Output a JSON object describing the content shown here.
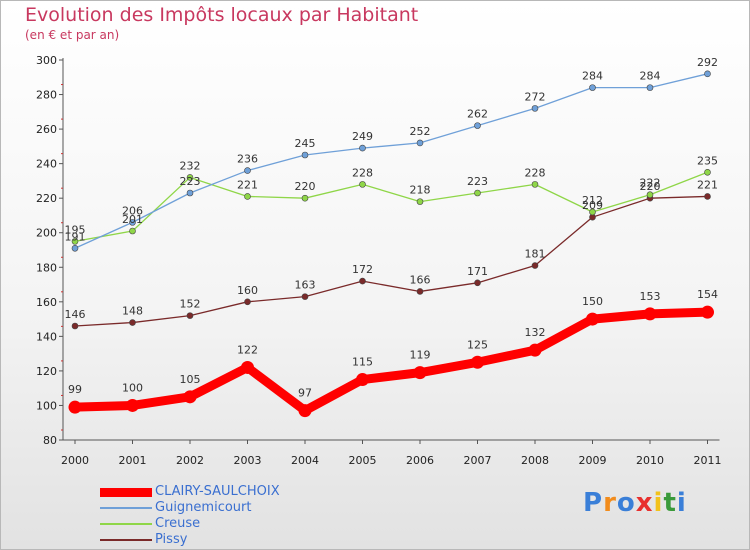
{
  "header": {
    "title": "Evolution des Impôts locaux par Habitant",
    "subtitle": "(en € et par an)"
  },
  "logo": {
    "text": "Proxiti",
    "colors": [
      "#3a7fd8",
      "#f28c1c",
      "#3a7fd8",
      "#e8302e",
      "#f2c21c",
      "#3a9a3a",
      "#3a7fd8"
    ]
  },
  "chart_data": {
    "type": "line",
    "title": "Evolution des Impôts locaux par Habitant",
    "subtitle": "(en € et par an)",
    "xlabel": "",
    "ylabel": "",
    "x": [
      "2000",
      "2001",
      "2002",
      "2003",
      "2004",
      "2005",
      "2006",
      "2007",
      "2008",
      "2009",
      "2010",
      "2011"
    ],
    "ylim": [
      80,
      300
    ],
    "yticks": [
      80,
      100,
      120,
      140,
      160,
      180,
      200,
      220,
      240,
      260,
      280,
      300
    ],
    "grid": false,
    "legend": "bottom-left",
    "series": [
      {
        "name": "CLAIRY-SAULCHOIX",
        "color": "#ff0000",
        "values": [
          99,
          100,
          105,
          122,
          97,
          115,
          119,
          125,
          132,
          150,
          153,
          154
        ]
      },
      {
        "name": "Guignemicourt",
        "color": "#6fa0d8",
        "values": [
          191,
          206,
          223,
          236,
          245,
          249,
          252,
          262,
          272,
          284,
          284,
          292
        ]
      },
      {
        "name": "Creuse",
        "color": "#8fd648",
        "values": [
          195,
          201,
          232,
          221,
          220,
          228,
          218,
          223,
          228,
          212,
          222,
          235
        ]
      },
      {
        "name": "Pissy",
        "color": "#7a2a2a",
        "values": [
          146,
          148,
          152,
          160,
          163,
          172,
          166,
          171,
          181,
          209,
          220,
          221
        ]
      }
    ]
  }
}
